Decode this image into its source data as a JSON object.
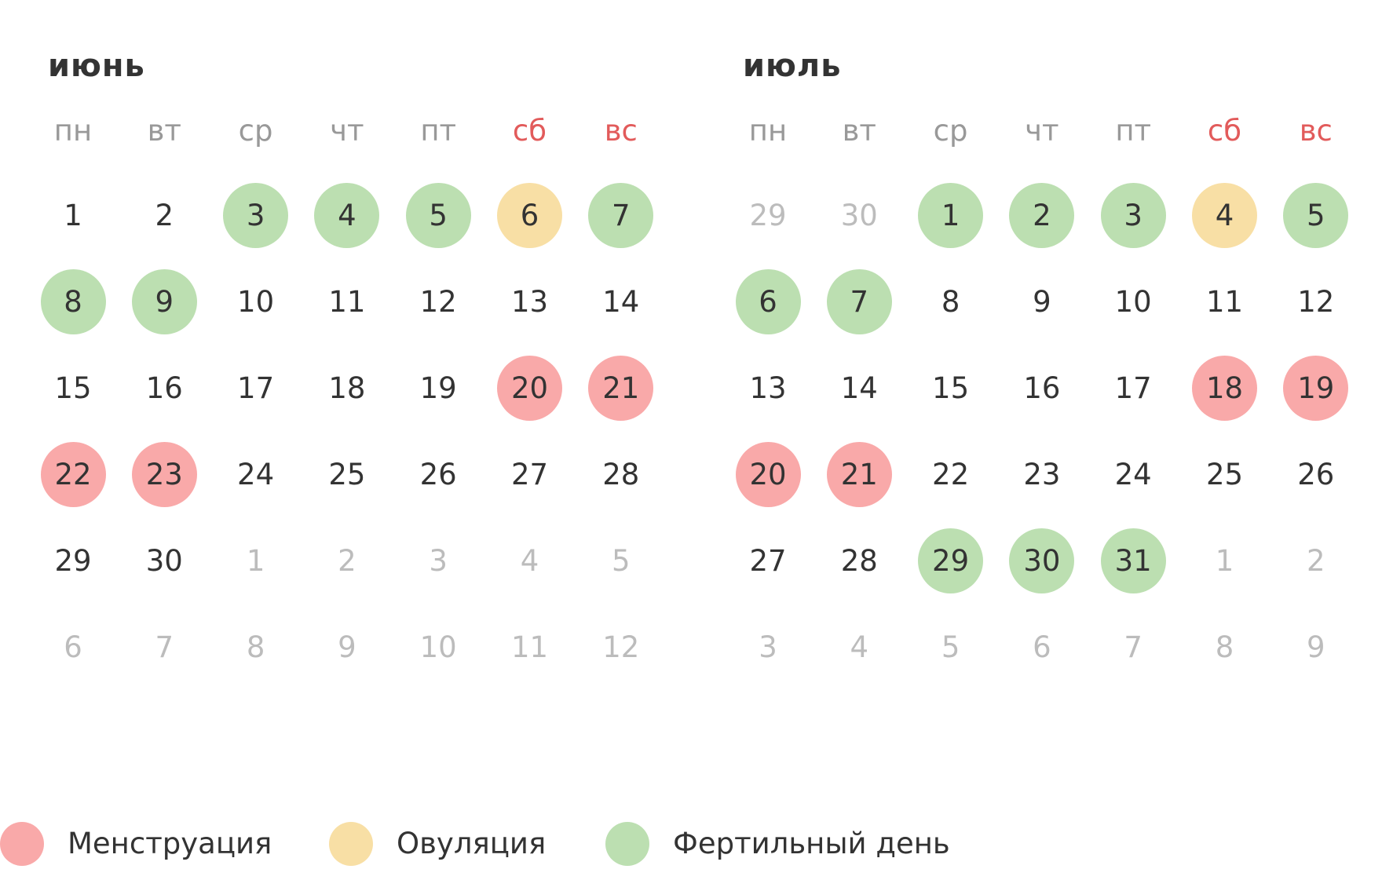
{
  "weekdays": [
    {
      "label": "пн",
      "weekend": false
    },
    {
      "label": "вт",
      "weekend": false
    },
    {
      "label": "ср",
      "weekend": false
    },
    {
      "label": "чт",
      "weekend": false
    },
    {
      "label": "пт",
      "weekend": false
    },
    {
      "label": "сб",
      "weekend": true
    },
    {
      "label": "вс",
      "weekend": true
    }
  ],
  "colors": {
    "menstruation": "#f9a9a9",
    "ovulation": "#f8dfa5",
    "fertile": "#bcdfb1",
    "weekend_label": "#e25b5b",
    "weekday_label": "#999999",
    "muted_day": "#bcbcbc",
    "day_text": "#333333"
  },
  "months": [
    {
      "title": "июнь",
      "weeks": [
        [
          {
            "d": "1",
            "s": "none"
          },
          {
            "d": "2",
            "s": "none"
          },
          {
            "d": "3",
            "s": "fertile"
          },
          {
            "d": "4",
            "s": "fertile"
          },
          {
            "d": "5",
            "s": "fertile"
          },
          {
            "d": "6",
            "s": "ovulation"
          },
          {
            "d": "7",
            "s": "fertile"
          }
        ],
        [
          {
            "d": "8",
            "s": "fertile"
          },
          {
            "d": "9",
            "s": "fertile"
          },
          {
            "d": "10",
            "s": "none"
          },
          {
            "d": "11",
            "s": "none"
          },
          {
            "d": "12",
            "s": "none"
          },
          {
            "d": "13",
            "s": "none"
          },
          {
            "d": "14",
            "s": "none"
          }
        ],
        [
          {
            "d": "15",
            "s": "none"
          },
          {
            "d": "16",
            "s": "none"
          },
          {
            "d": "17",
            "s": "none"
          },
          {
            "d": "18",
            "s": "none"
          },
          {
            "d": "19",
            "s": "none"
          },
          {
            "d": "20",
            "s": "menstruation"
          },
          {
            "d": "21",
            "s": "menstruation"
          }
        ],
        [
          {
            "d": "22",
            "s": "menstruation"
          },
          {
            "d": "23",
            "s": "menstruation"
          },
          {
            "d": "24",
            "s": "none"
          },
          {
            "d": "25",
            "s": "none"
          },
          {
            "d": "26",
            "s": "none"
          },
          {
            "d": "27",
            "s": "none"
          },
          {
            "d": "28",
            "s": "none"
          }
        ],
        [
          {
            "d": "29",
            "s": "none"
          },
          {
            "d": "30",
            "s": "none"
          },
          {
            "d": "1",
            "s": "other"
          },
          {
            "d": "2",
            "s": "other"
          },
          {
            "d": "3",
            "s": "other"
          },
          {
            "d": "4",
            "s": "other"
          },
          {
            "d": "5",
            "s": "other"
          }
        ],
        [
          {
            "d": "6",
            "s": "other"
          },
          {
            "d": "7",
            "s": "other"
          },
          {
            "d": "8",
            "s": "other"
          },
          {
            "d": "9",
            "s": "other"
          },
          {
            "d": "10",
            "s": "other"
          },
          {
            "d": "11",
            "s": "other"
          },
          {
            "d": "12",
            "s": "other"
          }
        ]
      ]
    },
    {
      "title": "июль",
      "weeks": [
        [
          {
            "d": "29",
            "s": "other"
          },
          {
            "d": "30",
            "s": "other"
          },
          {
            "d": "1",
            "s": "fertile"
          },
          {
            "d": "2",
            "s": "fertile"
          },
          {
            "d": "3",
            "s": "fertile"
          },
          {
            "d": "4",
            "s": "ovulation"
          },
          {
            "d": "5",
            "s": "fertile"
          }
        ],
        [
          {
            "d": "6",
            "s": "fertile"
          },
          {
            "d": "7",
            "s": "fertile"
          },
          {
            "d": "8",
            "s": "none"
          },
          {
            "d": "9",
            "s": "none"
          },
          {
            "d": "10",
            "s": "none"
          },
          {
            "d": "11",
            "s": "none"
          },
          {
            "d": "12",
            "s": "none"
          }
        ],
        [
          {
            "d": "13",
            "s": "none"
          },
          {
            "d": "14",
            "s": "none"
          },
          {
            "d": "15",
            "s": "none"
          },
          {
            "d": "16",
            "s": "none"
          },
          {
            "d": "17",
            "s": "none"
          },
          {
            "d": "18",
            "s": "menstruation"
          },
          {
            "d": "19",
            "s": "menstruation"
          }
        ],
        [
          {
            "d": "20",
            "s": "menstruation"
          },
          {
            "d": "21",
            "s": "menstruation"
          },
          {
            "d": "22",
            "s": "none"
          },
          {
            "d": "23",
            "s": "none"
          },
          {
            "d": "24",
            "s": "none"
          },
          {
            "d": "25",
            "s": "none"
          },
          {
            "d": "26",
            "s": "none"
          }
        ],
        [
          {
            "d": "27",
            "s": "none"
          },
          {
            "d": "28",
            "s": "none"
          },
          {
            "d": "29",
            "s": "fertile"
          },
          {
            "d": "30",
            "s": "fertile"
          },
          {
            "d": "31",
            "s": "fertile"
          },
          {
            "d": "1",
            "s": "other"
          },
          {
            "d": "2",
            "s": "other"
          }
        ],
        [
          {
            "d": "3",
            "s": "other"
          },
          {
            "d": "4",
            "s": "other"
          },
          {
            "d": "5",
            "s": "other"
          },
          {
            "d": "6",
            "s": "other"
          },
          {
            "d": "7",
            "s": "other"
          },
          {
            "d": "8",
            "s": "other"
          },
          {
            "d": "9",
            "s": "other"
          }
        ]
      ]
    }
  ],
  "legend": [
    {
      "key": "menstruation",
      "label": "Менструация"
    },
    {
      "key": "ovulation",
      "label": "Овуляция"
    },
    {
      "key": "fertile",
      "label": "Фертильный день"
    }
  ]
}
